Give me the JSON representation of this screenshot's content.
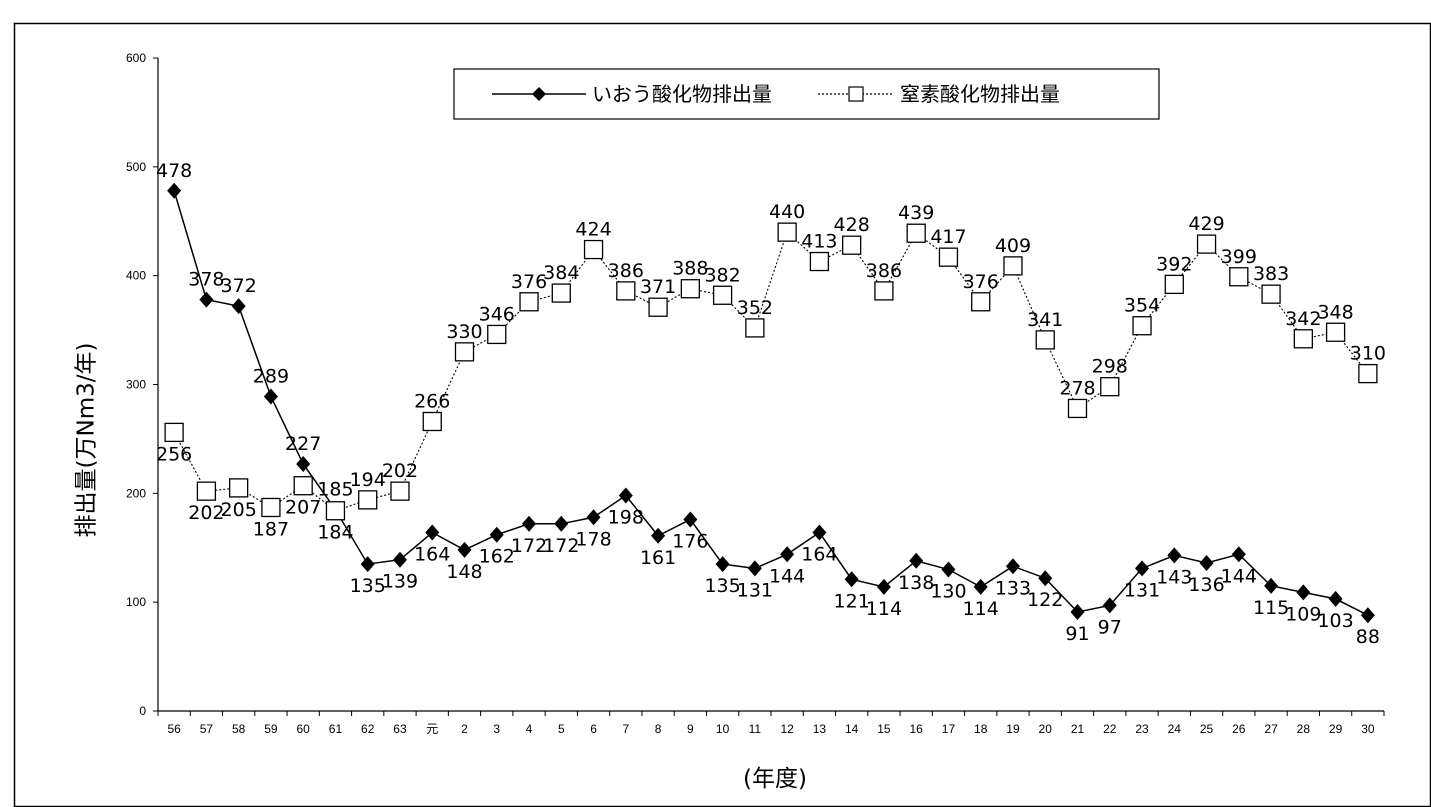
{
  "chart_data": {
    "type": "line",
    "title": "",
    "xlabel": "(年度)",
    "ylabel": "排出量(万Nm3/年)",
    "ylim": [
      0,
      600
    ],
    "yticks": [
      0,
      100,
      200,
      300,
      400,
      500,
      600
    ],
    "grid": false,
    "legend_position": "top-center",
    "categories": [
      "56",
      "57",
      "58",
      "59",
      "60",
      "61",
      "62",
      "63",
      "元",
      "2",
      "3",
      "4",
      "5",
      "6",
      "7",
      "8",
      "9",
      "10",
      "11",
      "12",
      "13",
      "14",
      "15",
      "16",
      "17",
      "18",
      "19",
      "20",
      "21",
      "22",
      "23",
      "24",
      "25",
      "26",
      "27",
      "28",
      "29",
      "30"
    ],
    "series": [
      {
        "name": "いおう酸化物排出量",
        "marker": "diamond-filled",
        "line_style": "solid",
        "values": [
          478,
          378,
          372,
          289,
          227,
          185,
          135,
          139,
          164,
          148,
          162,
          172,
          172,
          178,
          198,
          161,
          176,
          135,
          131,
          144,
          164,
          121,
          114,
          138,
          130,
          114,
          133,
          122,
          91,
          97,
          131,
          143,
          136,
          144,
          115,
          109,
          103,
          88
        ],
        "labels": [
          "478",
          "378",
          "372",
          "289",
          "227",
          "185",
          "135",
          "139",
          "164",
          "148",
          "162",
          "172",
          "172",
          "178",
          "198",
          "161",
          "176",
          "135",
          "131",
          "144",
          "164",
          "121",
          "114",
          "138",
          "130",
          "114",
          "133",
          "122",
          "91",
          "97",
          "131",
          "143",
          "136",
          "144",
          "115",
          "109",
          "103",
          "88"
        ]
      },
      {
        "name": "窒素酸化物排出量",
        "marker": "square-open",
        "line_style": "dotted",
        "values": [
          256,
          202,
          205,
          187,
          207,
          184,
          194,
          202,
          266,
          330,
          346,
          376,
          384,
          424,
          386,
          371,
          388,
          382,
          352,
          440,
          413,
          428,
          386,
          439,
          417,
          376,
          409,
          341,
          278,
          298,
          354,
          392,
          429,
          399,
          383,
          342,
          348,
          310
        ],
        "labels": [
          "256",
          "202",
          "205",
          "187",
          "207",
          "184",
          "194",
          "202",
          "266",
          "330",
          "346",
          "376",
          "384",
          "424",
          "386",
          "371",
          "388",
          "382",
          "352",
          "440",
          "413",
          "428",
          "386",
          "439",
          "417",
          "376",
          "409",
          "341",
          "278",
          "298",
          "354",
          "392",
          "429",
          "399",
          "383",
          "342",
          "348",
          "310"
        ]
      }
    ]
  },
  "colors": {
    "line": "#000000",
    "background": "#ffffff"
  }
}
